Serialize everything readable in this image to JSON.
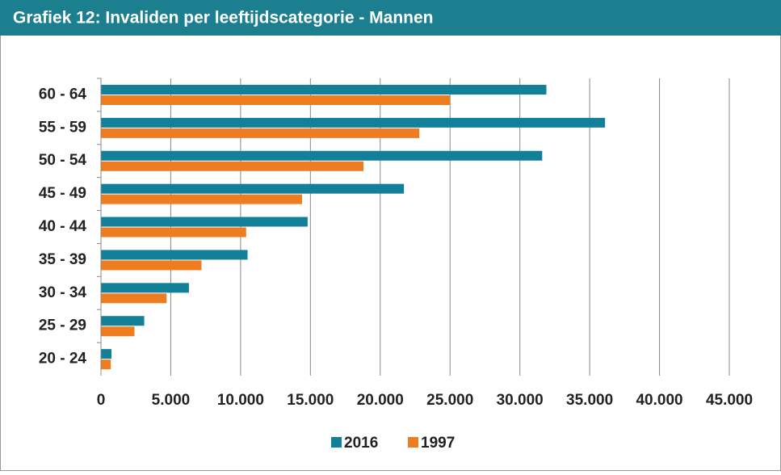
{
  "chart_data": {
    "type": "hbar",
    "title": "Grafiek 12: Invaliden per leeftijdscategorie - Mannen",
    "categories": [
      "60 - 64",
      "55 - 59",
      "50 - 54",
      "45 - 49",
      "40 - 44",
      "35 - 39",
      "30 - 34",
      "25 - 29",
      "20 - 24"
    ],
    "series": [
      {
        "name": "2016",
        "color": "#13809a",
        "values": [
          31900,
          36100,
          31600,
          21700,
          14800,
          10500,
          6300,
          3100,
          750
        ]
      },
      {
        "name": "1997",
        "color": "#ee7d22",
        "values": [
          25000,
          22800,
          18800,
          14400,
          10400,
          7200,
          4700,
          2400,
          700
        ]
      }
    ],
    "xlim": [
      0,
      45000
    ],
    "xticks": [
      0,
      {
        "value": 5000,
        "label": "5.000"
      },
      {
        "value": 10000,
        "label": "10.000"
      },
      {
        "value": 15000,
        "label": "15.000"
      },
      {
        "value": 20000,
        "label": "20.000"
      },
      {
        "value": 25000,
        "label": "25.000"
      },
      {
        "value": 30000,
        "label": "30.000"
      },
      {
        "value": 35000,
        "label": "35.000"
      },
      {
        "value": 40000,
        "label": "40.000"
      },
      {
        "value": 45000,
        "label": "45.000"
      }
    ],
    "grid": true,
    "legend": "bottom"
  }
}
